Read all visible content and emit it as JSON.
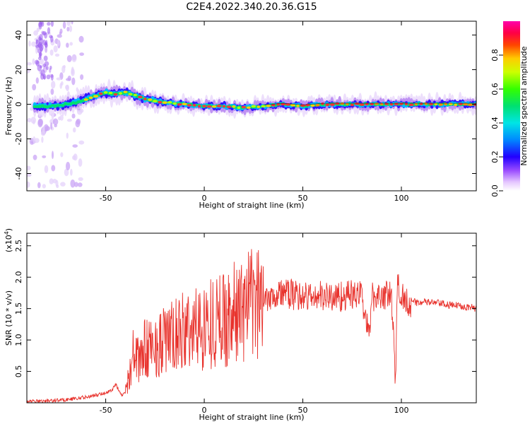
{
  "title": "C2E4.2022.340.20.36.G15",
  "chart_data": [
    {
      "type": "heatmap",
      "xlabel": "Height of straight line (km)",
      "ylabel": "Frequency (Hz)",
      "xlim": [
        -90,
        138
      ],
      "ylim": [
        -50,
        48
      ],
      "x_ticks": [
        -50,
        0,
        50,
        100
      ],
      "x_tick_labels": [
        "-50",
        "0",
        "50",
        "100"
      ],
      "y_ticks": [
        -40,
        -20,
        0,
        20,
        40
      ],
      "y_tick_labels": [
        "-40",
        "-20",
        "0",
        "20",
        "40"
      ],
      "colorbar": {
        "label": "Normalized spectral amplitude",
        "range": [
          0,
          1
        ],
        "ticks": [
          0.0,
          0.2,
          0.4,
          0.6,
          0.8
        ],
        "tick_labels": [
          "0.0",
          "0.2",
          "0.4",
          "0.6",
          "0.8"
        ]
      },
      "ridge_points": [
        {
          "x": -85,
          "y": -1
        },
        {
          "x": -75,
          "y": -1
        },
        {
          "x": -70,
          "y": 0
        },
        {
          "x": -65,
          "y": 1
        },
        {
          "x": -60,
          "y": 3
        },
        {
          "x": -55,
          "y": 5
        },
        {
          "x": -50,
          "y": 7
        },
        {
          "x": -45,
          "y": 6
        },
        {
          "x": -40,
          "y": 7
        },
        {
          "x": -35,
          "y": 5
        },
        {
          "x": -30,
          "y": 3
        },
        {
          "x": -25,
          "y": 2
        },
        {
          "x": -20,
          "y": 1
        },
        {
          "x": -10,
          "y": 0
        },
        {
          "x": 0,
          "y": -1
        },
        {
          "x": 10,
          "y": -1
        },
        {
          "x": 20,
          "y": -2
        },
        {
          "x": 30,
          "y": -1
        },
        {
          "x": 40,
          "y": 0
        },
        {
          "x": 50,
          "y": -1
        },
        {
          "x": 60,
          "y": 0
        },
        {
          "x": 80,
          "y": 0
        },
        {
          "x": 100,
          "y": 0
        },
        {
          "x": 120,
          "y": 0
        },
        {
          "x": 138,
          "y": 0
        }
      ],
      "grid": false
    },
    {
      "type": "line",
      "xlabel": "Height of straight line (km)",
      "ylabel": "SNR (10 * v/v)",
      "y_multiplier_label": "(x10",
      "y_multiplier_exponent": "4",
      "y_multiplier_close": ")",
      "xlim": [
        -90,
        138
      ],
      "ylim": [
        0,
        2.7
      ],
      "x_ticks": [
        -50,
        0,
        50,
        100
      ],
      "x_tick_labels": [
        "-50",
        "0",
        "50",
        "100"
      ],
      "y_ticks": [
        0.5,
        1.0,
        1.5,
        2.0,
        2.5
      ],
      "y_tick_labels": [
        "0.5",
        "1.0",
        "1.5",
        "2.0",
        "2.5"
      ],
      "series": [
        {
          "color": "#e8322c",
          "x": [
            -90,
            -80,
            -70,
            -60,
            -55,
            -50,
            -47,
            -45,
            -42,
            -40,
            -38,
            -36,
            -34,
            -30,
            -25,
            -20,
            -15,
            -10,
            -5,
            0,
            5,
            10,
            15,
            20,
            25,
            30,
            35,
            40,
            45,
            50,
            55,
            60,
            65,
            70,
            75,
            80,
            84,
            85,
            90,
            95,
            97,
            98,
            100,
            105,
            110,
            115,
            120,
            125,
            130,
            135,
            138
          ],
          "y": [
            0.02,
            0.03,
            0.05,
            0.09,
            0.12,
            0.16,
            0.2,
            0.3,
            0.12,
            0.18,
            0.5,
            0.8,
            0.7,
            0.9,
            0.95,
            1.05,
            1.1,
            1.2,
            1.25,
            1.3,
            1.38,
            1.42,
            1.5,
            1.6,
            1.65,
            1.7,
            1.72,
            1.75,
            1.72,
            1.7,
            1.68,
            1.7,
            1.68,
            1.7,
            1.72,
            1.7,
            1.0,
            1.7,
            1.72,
            1.7,
            0.3,
            1.9,
            1.7,
            1.6,
            1.6,
            1.6,
            1.58,
            1.55,
            1.55,
            1.52,
            1.5
          ]
        }
      ],
      "grid": false
    }
  ]
}
